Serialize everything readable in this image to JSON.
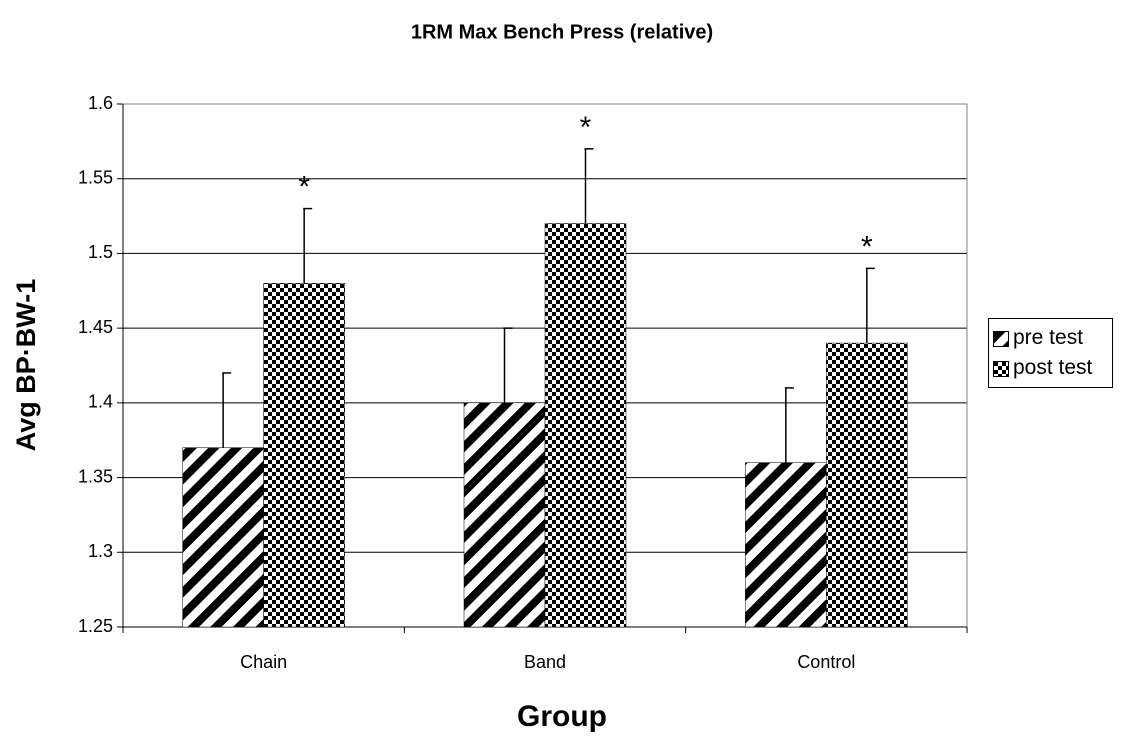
{
  "chart_data": {
    "type": "bar",
    "title": "1RM Max Bench Press (relative)",
    "x_label": "Group",
    "y_label": "Avg BP·BW-1",
    "categories": [
      "Chain",
      "Band",
      "Control"
    ],
    "series": [
      {
        "name": "pre test",
        "color": "#000000",
        "pattern": "diagonal",
        "values": [
          1.37,
          1.4,
          1.36
        ],
        "errors": [
          0.05,
          0.05,
          0.05
        ]
      },
      {
        "name": "post test",
        "color": "#000000",
        "pattern": "checker",
        "values": [
          1.48,
          1.52,
          1.44
        ],
        "errors": [
          0.05,
          0.05,
          0.05
        ]
      }
    ],
    "annotations": [
      "*",
      "*",
      "*"
    ],
    "ylim": [
      1.25,
      1.6
    ],
    "yticks": [
      1.25,
      1.3,
      1.35,
      1.4,
      1.45,
      1.5,
      1.55,
      1.6
    ],
    "grid": true,
    "legend": "right"
  }
}
